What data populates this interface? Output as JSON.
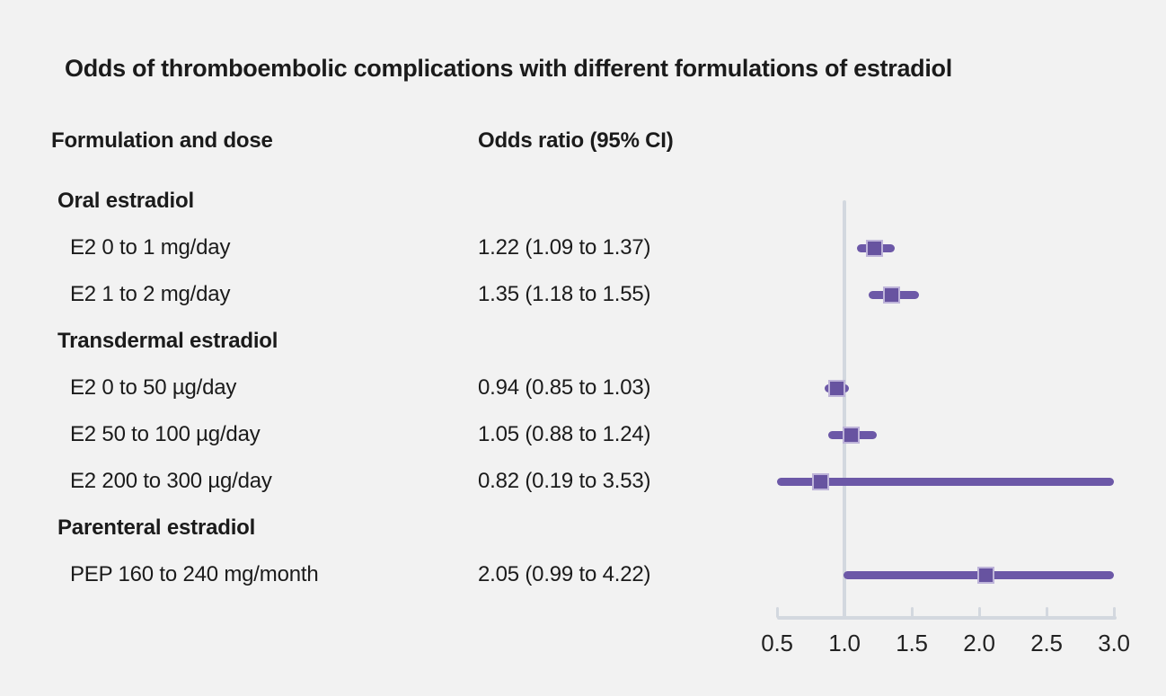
{
  "colors": {
    "background": "#f2f2f2",
    "text": "#1b1b1b",
    "ci_line": "#6c58a7",
    "marker_fill": "#6753a0",
    "marker_border": "#beb4d9",
    "axis": "#d3d8df"
  },
  "columns": {
    "formulation": "Formulation and dose",
    "odds_ratio": "Odds ratio (95% CI)"
  },
  "chart_data": {
    "type": "forest",
    "title": "Odds of thromboembolic complications with different formulations of estradiol",
    "xlabel": "",
    "legend": "none",
    "grid": "off",
    "axis": {
      "scale": "linear",
      "min": 0.5,
      "max": 3.0,
      "ticks": [
        0.5,
        1.0,
        1.5,
        2.0,
        2.5,
        3.0
      ],
      "reference_line": 1.0,
      "clip_ci_to_range": true
    },
    "groups": [
      {
        "label": "Oral estradiol",
        "items": [
          {
            "label": "E2 0 to 1 mg/day",
            "or_text": "1.22 (1.09 to 1.37)",
            "or": 1.22,
            "ci_low": 1.09,
            "ci_high": 1.37
          },
          {
            "label": "E2 1 to 2 mg/day",
            "or_text": "1.35 (1.18 to 1.55)",
            "or": 1.35,
            "ci_low": 1.18,
            "ci_high": 1.55
          }
        ]
      },
      {
        "label": "Transdermal estradiol",
        "items": [
          {
            "label": "E2 0 to 50 µg/day",
            "or_text": "0.94 (0.85 to 1.03)",
            "or": 0.94,
            "ci_low": 0.85,
            "ci_high": 1.03
          },
          {
            "label": "E2 50 to 100 µg/day",
            "or_text": "1.05 (0.88 to 1.24)",
            "or": 1.05,
            "ci_low": 0.88,
            "ci_high": 1.24
          },
          {
            "label": "E2 200 to 300 µg/day",
            "or_text": "0.82 (0.19 to 3.53)",
            "or": 0.82,
            "ci_low": 0.19,
            "ci_high": 3.53
          }
        ]
      },
      {
        "label": "Parenteral estradiol",
        "items": [
          {
            "label": "PEP 160 to 240 mg/month",
            "or_text": "2.05 (0.99 to 4.22)",
            "or": 2.05,
            "ci_low": 0.99,
            "ci_high": 4.22
          }
        ]
      }
    ]
  }
}
